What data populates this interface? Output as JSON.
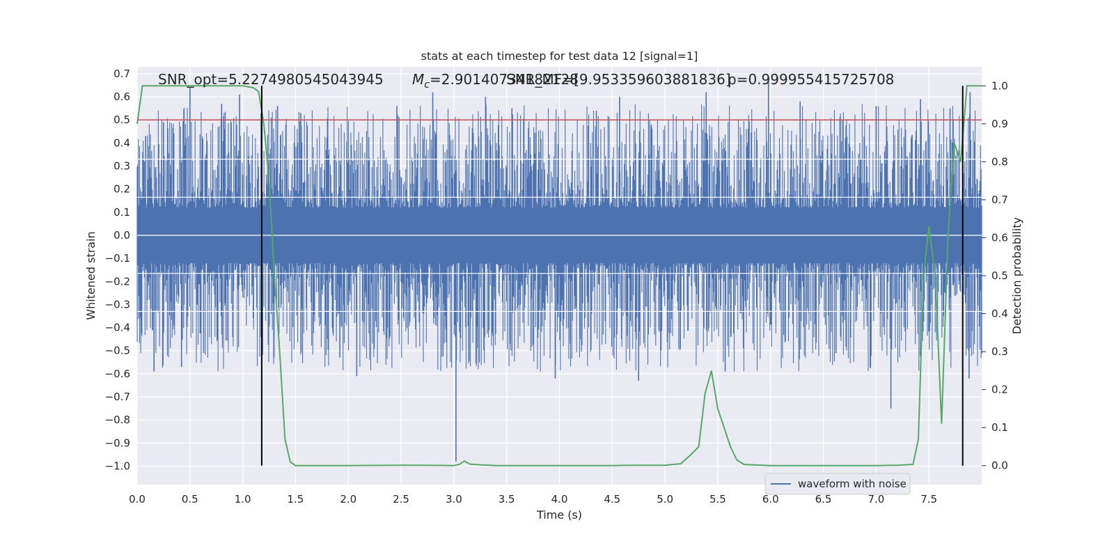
{
  "chart_data": {
    "type": "line",
    "title": "stats at each timestep for test data 12 [signal=1]",
    "xlabel": "Time (s)",
    "ylabel": "Whitened strain",
    "y2label": "Detection probability",
    "xlim": [
      0.0,
      8.0
    ],
    "ylim": [
      -1.08,
      0.73
    ],
    "y2lim": [
      -0.05,
      1.05
    ],
    "xticks": [
      "0.0",
      "0.5",
      "1.0",
      "1.5",
      "2.0",
      "2.5",
      "3.0",
      "3.5",
      "4.0",
      "4.5",
      "5.0",
      "5.5",
      "6.0",
      "6.5",
      "7.0",
      "7.5"
    ],
    "xtick_values": [
      0.0,
      0.5,
      1.0,
      1.5,
      2.0,
      2.5,
      3.0,
      3.5,
      4.0,
      4.5,
      5.0,
      5.5,
      6.0,
      6.5,
      7.0,
      7.5
    ],
    "yticks": [
      "0.7",
      "0.6",
      "0.5",
      "0.4",
      "0.3",
      "0.2",
      "0.1",
      "0.0",
      "−0.1",
      "−0.2",
      "−0.3",
      "−0.4",
      "−0.5",
      "−0.6",
      "−0.7",
      "−0.8",
      "−0.9",
      "−1.0"
    ],
    "ytick_values": [
      0.7,
      0.6,
      0.5,
      0.4,
      0.3,
      0.2,
      0.1,
      0.0,
      -0.1,
      -0.2,
      -0.3,
      -0.4,
      -0.5,
      -0.6,
      -0.7,
      -0.8,
      -0.9,
      -1.0
    ],
    "y2ticks": [
      "1.0",
      "0.9",
      "0.8",
      "0.7",
      "0.6",
      "0.5",
      "0.4",
      "0.3",
      "0.2",
      "0.1",
      "0.0"
    ],
    "y2tick_values": [
      1.0,
      0.9,
      0.8,
      0.7,
      0.6,
      0.5,
      0.4,
      0.3,
      0.2,
      0.1,
      0.0
    ],
    "grid": true,
    "legend": {
      "position": "bottom-right",
      "entries": [
        "waveform with noise"
      ]
    },
    "annotations": {
      "snr_opt": "SNR_opt=5.2274980545043945",
      "mc": "=2.90140734182128",
      "mc_symbol": "M",
      "mc_subscript": "c",
      "snr_mf": "SNR_MF=[9.953359603881836]",
      "p": "p=0.999955415725708"
    },
    "threshold": {
      "value": 0.5,
      "color": "#c44e52"
    },
    "vertical_markers": [
      1.18,
      7.82
    ],
    "series": [
      {
        "name": "waveform with noise",
        "color": "#4c72b0",
        "envelope": true,
        "upper_typical": 0.33,
        "lower_typical": -0.37,
        "spikes": [
          {
            "x": 0.08,
            "y": 0.43
          },
          {
            "x": 0.16,
            "y": -0.59
          },
          {
            "x": 0.25,
            "y": 0.49
          },
          {
            "x": 0.42,
            "y": -0.57
          },
          {
            "x": 0.5,
            "y": 0.64
          },
          {
            "x": 0.63,
            "y": -0.51
          },
          {
            "x": 0.8,
            "y": 0.57
          },
          {
            "x": 0.97,
            "y": 0.61
          },
          {
            "x": 1.33,
            "y": 0.56
          },
          {
            "x": 1.55,
            "y": 0.53
          },
          {
            "x": 1.92,
            "y": -0.53
          },
          {
            "x": 2.08,
            "y": -0.61
          },
          {
            "x": 2.46,
            "y": 0.56
          },
          {
            "x": 2.8,
            "y": 0.62
          },
          {
            "x": 3.02,
            "y": -0.98
          },
          {
            "x": 3.3,
            "y": 0.6
          },
          {
            "x": 3.55,
            "y": 0.55
          },
          {
            "x": 3.96,
            "y": -0.62
          },
          {
            "x": 4.35,
            "y": 0.54
          },
          {
            "x": 4.57,
            "y": 0.6
          },
          {
            "x": 4.75,
            "y": -0.63
          },
          {
            "x": 5.39,
            "y": 0.62
          },
          {
            "x": 5.57,
            "y": -0.59
          },
          {
            "x": 5.98,
            "y": 0.69
          },
          {
            "x": 6.28,
            "y": 0.58
          },
          {
            "x": 6.62,
            "y": -0.51
          },
          {
            "x": 7.0,
            "y": 0.56
          },
          {
            "x": 7.14,
            "y": -0.75
          },
          {
            "x": 7.42,
            "y": 0.59
          },
          {
            "x": 7.7,
            "y": 0.55
          },
          {
            "x": 7.89,
            "y": 0.62
          },
          {
            "x": 7.88,
            "y": -0.62
          }
        ]
      },
      {
        "name": "",
        "axis": "right",
        "color": "#55a868",
        "x": [
          0.0,
          0.05,
          0.1,
          0.2,
          0.4,
          0.6,
          0.8,
          1.0,
          1.1,
          1.15,
          1.2,
          1.25,
          1.3,
          1.35,
          1.4,
          1.45,
          1.5,
          1.6,
          2.0,
          2.5,
          2.7,
          3.0,
          3.05,
          3.1,
          3.15,
          3.25,
          3.4,
          4.0,
          4.5,
          4.7,
          5.0,
          5.15,
          5.25,
          5.32,
          5.38,
          5.44,
          5.5,
          5.56,
          5.62,
          5.68,
          5.75,
          6.0,
          6.5,
          7.0,
          7.2,
          7.35,
          7.4,
          7.45,
          7.5,
          7.56,
          7.62,
          7.68,
          7.74,
          7.8,
          7.86,
          7.92,
          8.0
        ],
        "y": [
          0.9,
          1.0,
          1.0,
          1.0,
          1.0,
          1.0,
          1.0,
          1.0,
          0.995,
          0.985,
          0.9,
          0.75,
          0.5,
          0.3,
          0.07,
          0.01,
          0.0,
          0.0,
          0.0,
          0.001,
          0.001,
          0.0,
          0.003,
          0.012,
          0.004,
          0.002,
          0.0,
          0.0,
          0.0,
          0.001,
          0.001,
          0.005,
          0.03,
          0.05,
          0.19,
          0.25,
          0.15,
          0.1,
          0.05,
          0.015,
          0.003,
          0.0,
          0.0,
          0.0,
          0.001,
          0.003,
          0.07,
          0.5,
          0.63,
          0.5,
          0.11,
          0.6,
          0.85,
          0.8,
          1.0,
          1.0,
          1.0
        ]
      }
    ]
  }
}
